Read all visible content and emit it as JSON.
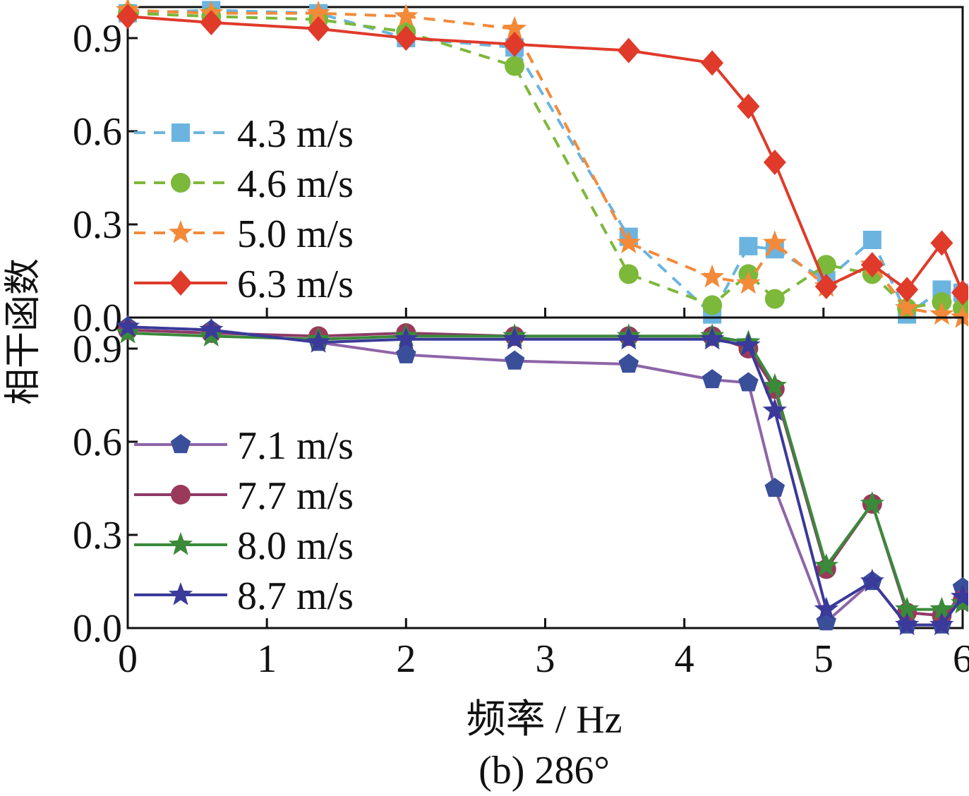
{
  "caption": "(b) 286°",
  "colors": {
    "axis": "#111111",
    "s43": "#6BB4E0",
    "s46": "#7CB83A",
    "s50": "#F28A3A",
    "s63": "#E03A2A",
    "s71_line": "#8E64A8",
    "s71_marker": "#3A4F9A",
    "s77_line": "#8E3A66",
    "s77_marker": "#9A3A5A",
    "s80": "#3A8A3A",
    "s87": "#3A3A9A"
  },
  "chart_data": [
    {
      "type": "line",
      "panel": "top",
      "ylabel": "相干函数",
      "xlim": [
        0,
        6
      ],
      "ylim": [
        0,
        1.0
      ],
      "yticks": [
        "0.0",
        "0.3",
        "0.6",
        "0.9"
      ],
      "legend_position": "left",
      "x": [
        0,
        0.6,
        1.37,
        2.0,
        2.78,
        3.6,
        4.2,
        4.46,
        4.65,
        5.02,
        5.35,
        5.6,
        5.85,
        6.0
      ],
      "series": [
        {
          "name": "4.3 m/s",
          "style": "dashed",
          "marker": "square",
          "color_key": "s43",
          "line_key": "s43",
          "values": [
            0.98,
            0.99,
            0.98,
            0.9,
            0.87,
            0.26,
            0.01,
            0.23,
            0.22,
            0.12,
            0.25,
            0.01,
            0.09,
            0.08
          ]
        },
        {
          "name": "4.6 m/s",
          "style": "dashed",
          "marker": "circle",
          "color_key": "s46",
          "line_key": "s46",
          "values": [
            0.98,
            0.97,
            0.96,
            0.92,
            0.81,
            0.14,
            0.04,
            0.14,
            0.06,
            0.17,
            0.14,
            0.03,
            0.05,
            0.03
          ]
        },
        {
          "name": "5.0 m/s",
          "style": "dashed",
          "marker": "star",
          "color_key": "s50",
          "line_key": "s50",
          "values": [
            0.99,
            0.98,
            0.98,
            0.97,
            0.93,
            0.24,
            0.13,
            0.11,
            0.24,
            0.1,
            0.17,
            0.03,
            0.01,
            0.0
          ]
        },
        {
          "name": "6.3 m/s",
          "style": "solid",
          "marker": "diamond",
          "color_key": "s63",
          "line_key": "s63",
          "values": [
            0.97,
            0.95,
            0.93,
            0.9,
            0.88,
            0.86,
            0.82,
            0.68,
            0.5,
            0.1,
            0.17,
            0.09,
            0.24,
            0.08
          ]
        }
      ]
    },
    {
      "type": "line",
      "panel": "bottom",
      "ylabel": "相干函数",
      "xlabel": "频率 / Hz",
      "xlim": [
        0,
        6
      ],
      "ylim": [
        0,
        1.0
      ],
      "xticks": [
        "0",
        "1",
        "2",
        "3",
        "4",
        "5",
        "6"
      ],
      "yticks": [
        "0.0",
        "0.3",
        "0.6",
        "0.9"
      ],
      "legend_position": "left",
      "x": [
        0,
        0.6,
        1.37,
        2.0,
        2.78,
        3.6,
        4.2,
        4.46,
        4.65,
        5.02,
        5.35,
        5.6,
        5.85,
        6.0
      ],
      "series": [
        {
          "name": "7.1 m/s",
          "style": "solid",
          "marker": "pentagon",
          "color_key": "s71_marker",
          "line_key": "s71_line",
          "values": [
            0.97,
            0.96,
            0.92,
            0.88,
            0.86,
            0.85,
            0.8,
            0.79,
            0.45,
            0.02,
            0.15,
            0.01,
            0.01,
            0.13
          ]
        },
        {
          "name": "7.7 m/s",
          "style": "solid",
          "marker": "circle",
          "color_key": "s77_marker",
          "line_key": "s77_line",
          "values": [
            0.96,
            0.95,
            0.94,
            0.95,
            0.94,
            0.94,
            0.94,
            0.9,
            0.77,
            0.19,
            0.4,
            0.05,
            0.04,
            0.09
          ]
        },
        {
          "name": "8.0 m/s",
          "style": "solid",
          "marker": "star",
          "color_key": "s80",
          "line_key": "s80",
          "values": [
            0.95,
            0.94,
            0.93,
            0.94,
            0.94,
            0.94,
            0.94,
            0.92,
            0.78,
            0.2,
            0.4,
            0.06,
            0.06,
            0.08
          ]
        },
        {
          "name": "8.7 m/s",
          "style": "solid",
          "marker": "star",
          "color_key": "s87",
          "line_key": "s87",
          "values": [
            0.97,
            0.96,
            0.92,
            0.93,
            0.93,
            0.93,
            0.93,
            0.91,
            0.7,
            0.06,
            0.15,
            0.01,
            0.01,
            0.1
          ]
        }
      ]
    }
  ]
}
